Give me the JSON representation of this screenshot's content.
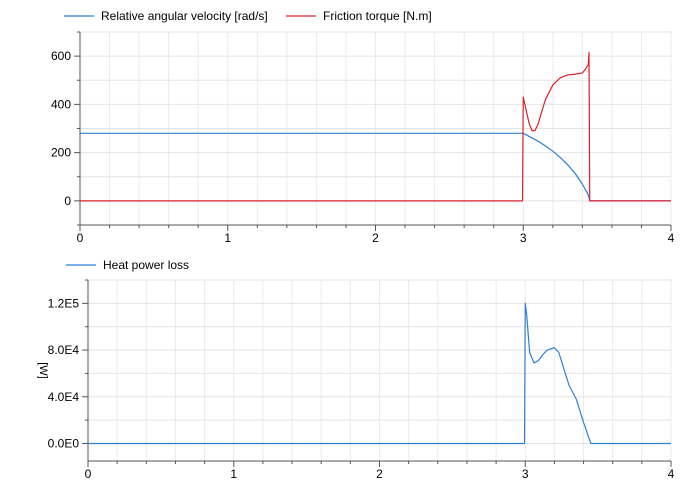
{
  "chart_data": [
    {
      "type": "line",
      "xlabel": "",
      "ylabel": "",
      "xlim": [
        0,
        4
      ],
      "ylim": [
        -100,
        700
      ],
      "x_ticks": [
        "0",
        "1",
        "2",
        "3",
        "4"
      ],
      "y_ticks": [
        "0",
        "200",
        "400",
        "600"
      ],
      "grid": true,
      "legend_position": "top",
      "series": [
        {
          "name": "Relative angular velocity [rad/s]",
          "color": "#2f7fd6",
          "x": [
            0,
            3.0,
            3.05,
            3.1,
            3.15,
            3.2,
            3.25,
            3.3,
            3.35,
            3.4,
            3.44,
            3.45,
            4.0
          ],
          "y": [
            280,
            280,
            264,
            247,
            228,
            206,
            180,
            150,
            115,
            70,
            25,
            0,
            0
          ]
        },
        {
          "name": "Friction torque [N.m]",
          "color": "#e0202a",
          "x": [
            0,
            2.995,
            3.0,
            3.02,
            3.04,
            3.06,
            3.08,
            3.1,
            3.12,
            3.15,
            3.2,
            3.25,
            3.3,
            3.35,
            3.4,
            3.42,
            3.44,
            3.445,
            3.45,
            4.0
          ],
          "y": [
            0,
            0,
            430,
            375,
            320,
            290,
            292,
            318,
            360,
            420,
            480,
            510,
            522,
            525,
            530,
            545,
            565,
            615,
            0,
            0
          ]
        }
      ]
    },
    {
      "type": "line",
      "xlabel": "",
      "ylabel": "[W]",
      "xlim": [
        0,
        4
      ],
      "ylim": [
        -15000,
        140000
      ],
      "x_ticks": [
        "0",
        "1",
        "2",
        "3",
        "4"
      ],
      "y_ticks": [
        "0.0E0",
        "4.0E4",
        "8.0E4",
        "1.2E5"
      ],
      "grid": true,
      "legend_position": "top",
      "series": [
        {
          "name": "Heat power loss",
          "color": "#2f7fd6",
          "x": [
            0,
            2.995,
            3.0,
            3.01,
            3.03,
            3.06,
            3.09,
            3.12,
            3.15,
            3.2,
            3.23,
            3.26,
            3.3,
            3.35,
            3.4,
            3.45,
            4.0
          ],
          "y": [
            0,
            0,
            120000,
            110000,
            78000,
            69000,
            71000,
            76000,
            80000,
            82000,
            78000,
            66000,
            50000,
            38000,
            18000,
            0,
            0
          ]
        }
      ]
    }
  ]
}
